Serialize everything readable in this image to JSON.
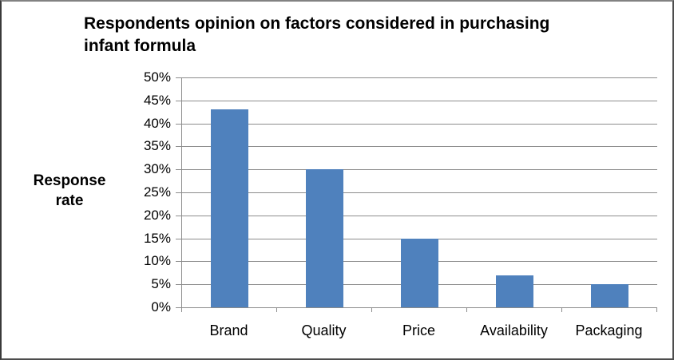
{
  "header": {
    "title_lines": [
      "Respondents opinion on factors considered in purchasing",
      "infant formula"
    ],
    "ylabel_lines": [
      "Response",
      "rate"
    ]
  },
  "chart_data": {
    "type": "bar",
    "title": "Respondents opinion on factors considered in purchasing infant formula",
    "categories": [
      "Brand",
      "Quality",
      "Price",
      "Availability",
      "Packaging"
    ],
    "values": [
      43,
      30,
      15,
      7,
      5
    ],
    "xlabel": "",
    "ylabel": "Response rate",
    "ylim": [
      0,
      50
    ],
    "ytick_step": 5,
    "ytick_suffix": "%",
    "ytick_labels": [
      "0%",
      "5%",
      "10%",
      "15%",
      "20%",
      "25%",
      "30%",
      "35%",
      "40%",
      "45%",
      "50%"
    ],
    "grid": true,
    "legend": false,
    "bar_color": "#4F81BD",
    "gridline_color": "#8C8C8C",
    "axis_color": "#8C8C8C",
    "text_color": "#000000",
    "background_color": "#FFFFFF"
  }
}
